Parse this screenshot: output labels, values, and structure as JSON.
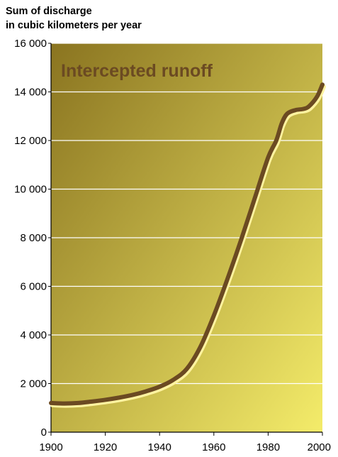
{
  "chart_data": {
    "type": "line",
    "title_lines": [
      "Sum of discharge",
      "in cubic kilometers per year"
    ],
    "xlabel": "",
    "ylabel": "",
    "xlim": [
      1900,
      2000
    ],
    "ylim": [
      0,
      16000
    ],
    "x_ticks": [
      "1900",
      "1920",
      "1940",
      "1960",
      "1980",
      "2000"
    ],
    "y_ticks": [
      "0",
      "2 000",
      "4 000",
      "6 000",
      "8 000",
      "10 000",
      "12 000",
      "14 000",
      "16 000"
    ],
    "grid": "horizontal",
    "series": [
      {
        "name": "Intercepted runoff",
        "x": [
          1900,
          1905,
          1910,
          1915,
          1920,
          1925,
          1930,
          1935,
          1940,
          1945,
          1950,
          1955,
          1960,
          1965,
          1970,
          1975,
          1980,
          1983,
          1985,
          1987,
          1990,
          1993,
          1995,
          1998,
          2000
        ],
        "y": [
          1200,
          1180,
          1200,
          1260,
          1330,
          1420,
          1530,
          1680,
          1870,
          2150,
          2600,
          3500,
          4800,
          6300,
          7900,
          9600,
          11300,
          12000,
          12700,
          13100,
          13250,
          13300,
          13400,
          13800,
          14300
        ]
      }
    ],
    "colors": {
      "line": "#6b4a22",
      "line_highlight": "#fff3a0",
      "background_top_left": "#8a7420",
      "background_bottom_right": "#f4ec6a",
      "grid": "#ffffff"
    }
  }
}
